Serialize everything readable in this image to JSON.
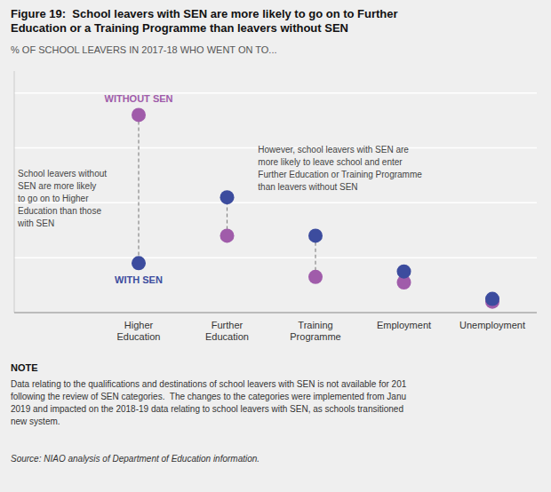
{
  "chart_data": {
    "type": "dumbbell",
    "title": "Figure 19:  School leavers with SEN are more likely to go on to Further\nEducation or a Training Programme than leavers without SEN",
    "subtitle": "% OF SCHOOL LEAVERS IN 2017-18 WHO WENT ON TO...",
    "categories": [
      "Higher\nEducation",
      "Further\nEducation",
      "Training\nProgramme",
      "Employment",
      "Unemployment"
    ],
    "series": [
      {
        "name": "WITHOUT SEN",
        "color": "#a05caa",
        "values": [
          72,
          28,
          13,
          11,
          4
        ]
      },
      {
        "name": "WITH SEN",
        "color": "#3c4c9e",
        "values": [
          18,
          42,
          28,
          15,
          5
        ]
      }
    ],
    "ylim": [
      0,
      88
    ],
    "yticks": [
      20,
      40,
      60,
      80
    ],
    "grid": true,
    "tick_labels": "x",
    "annotations": [
      "School leavers without\nSEN are more likely\nto go on to Higher\nEducation than those\nwith SEN",
      "However, school leavers with SEN are\nmore likely to leave school and enter\nFurther Education or Training Programme\nthan leavers without SEN"
    ],
    "note_title": "NOTE",
    "note": "Data relating to the qualifications and destinations of school leavers with SEN is not available for 201\nfollowing the review of SEN categories.  The changes to the categories were implemented from Janu\n2019 and impacted on the 2018-19 data relating to school leavers with SEN, as schools transitioned\nnew system.",
    "source": "Source: NIAO analysis of Department of Education information."
  }
}
